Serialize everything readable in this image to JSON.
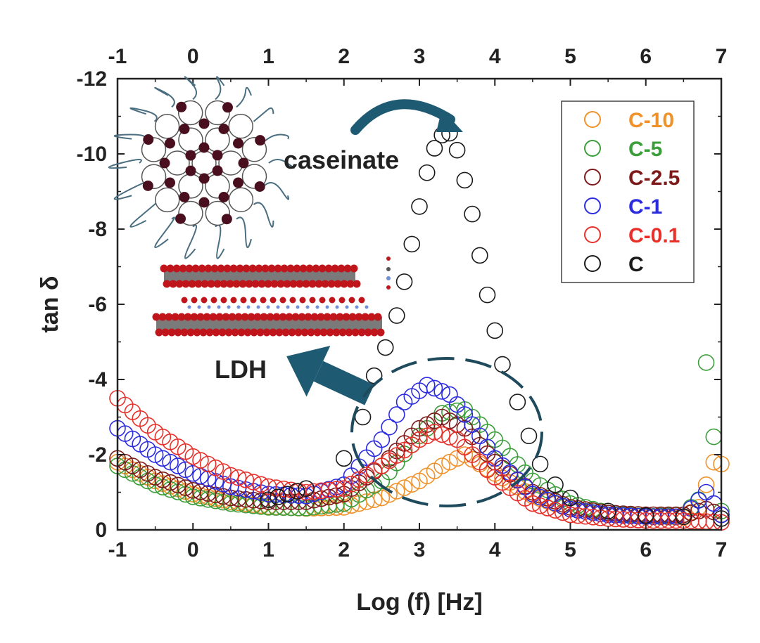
{
  "chart_data": {
    "type": "scatter",
    "title": "",
    "xlabel": "Log (f) [Hz]",
    "ylabel": "tan δ",
    "xlim": [
      -1,
      7
    ],
    "ylim": [
      0,
      -12
    ],
    "x_ticks": [
      "-1",
      "0",
      "1",
      "2",
      "3",
      "4",
      "5",
      "6",
      "7"
    ],
    "y_ticks": [
      "0",
      "-2",
      "-4",
      "-6",
      "-8",
      "-10",
      "-12"
    ],
    "legend_position": "top-right",
    "marker": "open-circle",
    "annotations": {
      "caseinate_label": "caseinate",
      "ldh_label": "LDH"
    },
    "series": [
      {
        "name": "C-10",
        "color": "#f0922b",
        "peak_x": 3.6,
        "peak_y": -2.0,
        "points": [
          [
            -1.0,
            -1.8
          ],
          [
            -0.5,
            -1.3
          ],
          [
            0.0,
            -0.95
          ],
          [
            0.5,
            -0.75
          ],
          [
            1.0,
            -0.62
          ],
          [
            1.5,
            -0.57
          ],
          [
            2.0,
            -0.6
          ],
          [
            2.5,
            -0.85
          ],
          [
            3.0,
            -1.3
          ],
          [
            3.3,
            -1.7
          ],
          [
            3.6,
            -2.0
          ],
          [
            4.0,
            -1.5
          ],
          [
            4.5,
            -0.9
          ],
          [
            5.0,
            -0.55
          ],
          [
            5.5,
            -0.4
          ],
          [
            6.0,
            -0.35
          ],
          [
            6.5,
            -0.33
          ],
          [
            6.7,
            -0.6
          ],
          [
            6.9,
            -1.8
          ],
          [
            7.0,
            -1.75
          ]
        ]
      },
      {
        "name": "C-5",
        "color": "#3c9e3a",
        "peak_x": 3.6,
        "peak_y": -3.2,
        "points": [
          [
            -1.0,
            -1.7
          ],
          [
            -0.5,
            -1.2
          ],
          [
            0.0,
            -0.88
          ],
          [
            0.5,
            -0.7
          ],
          [
            1.0,
            -0.6
          ],
          [
            1.5,
            -0.58
          ],
          [
            2.0,
            -0.7
          ],
          [
            2.5,
            -1.3
          ],
          [
            3.0,
            -2.5
          ],
          [
            3.3,
            -3.1
          ],
          [
            3.6,
            -3.2
          ],
          [
            4.0,
            -2.4
          ],
          [
            4.5,
            -1.3
          ],
          [
            5.0,
            -0.7
          ],
          [
            5.5,
            -0.45
          ],
          [
            6.0,
            -0.35
          ],
          [
            6.5,
            -0.4
          ],
          [
            6.7,
            -0.8
          ],
          [
            6.8,
            -4.45
          ],
          [
            7.0,
            -0.5
          ]
        ]
      },
      {
        "name": "C-2.5",
        "color": "#7d1a1a",
        "peak_x": 3.3,
        "peak_y": -3.0,
        "points": [
          [
            -1.0,
            -1.9
          ],
          [
            -0.5,
            -1.4
          ],
          [
            0.0,
            -1.05
          ],
          [
            0.5,
            -0.85
          ],
          [
            1.0,
            -0.75
          ],
          [
            1.5,
            -0.75
          ],
          [
            2.0,
            -0.95
          ],
          [
            2.5,
            -1.7
          ],
          [
            3.0,
            -2.7
          ],
          [
            3.3,
            -3.0
          ],
          [
            3.6,
            -2.7
          ],
          [
            4.0,
            -1.8
          ],
          [
            4.5,
            -1.0
          ],
          [
            5.0,
            -0.6
          ],
          [
            5.5,
            -0.45
          ],
          [
            6.0,
            -0.4
          ],
          [
            6.5,
            -0.4
          ],
          [
            6.8,
            -0.55
          ],
          [
            7.0,
            -0.4
          ]
        ]
      },
      {
        "name": "C-1",
        "color": "#2b2be0",
        "peak_x": 3.1,
        "peak_y": -3.85,
        "points": [
          [
            -1.0,
            -2.7
          ],
          [
            -0.5,
            -2.0
          ],
          [
            0.0,
            -1.5
          ],
          [
            0.5,
            -1.15
          ],
          [
            1.0,
            -0.95
          ],
          [
            1.5,
            -0.9
          ],
          [
            2.0,
            -1.2
          ],
          [
            2.5,
            -2.4
          ],
          [
            2.8,
            -3.4
          ],
          [
            3.1,
            -3.85
          ],
          [
            3.4,
            -3.6
          ],
          [
            3.7,
            -2.8
          ],
          [
            4.0,
            -1.9
          ],
          [
            4.5,
            -0.95
          ],
          [
            5.0,
            -0.55
          ],
          [
            5.5,
            -0.4
          ],
          [
            6.0,
            -0.35
          ],
          [
            6.5,
            -0.35
          ],
          [
            6.8,
            -1.0
          ],
          [
            7.0,
            -0.4
          ]
        ]
      },
      {
        "name": "C-0.1",
        "color": "#e8302a",
        "peak_x": 3.2,
        "peak_y": -2.6,
        "points": [
          [
            -1.0,
            -3.5
          ],
          [
            -0.5,
            -2.6
          ],
          [
            0.0,
            -1.95
          ],
          [
            0.5,
            -1.45
          ],
          [
            1.0,
            -1.15
          ],
          [
            1.5,
            -1.0
          ],
          [
            2.0,
            -1.1
          ],
          [
            2.5,
            -1.7
          ],
          [
            3.0,
            -2.4
          ],
          [
            3.2,
            -2.6
          ],
          [
            3.5,
            -2.4
          ],
          [
            4.0,
            -1.4
          ],
          [
            4.5,
            -0.7
          ],
          [
            5.0,
            -0.4
          ],
          [
            5.5,
            -0.3
          ],
          [
            6.0,
            -0.25
          ],
          [
            6.5,
            -0.25
          ],
          [
            7.0,
            -0.2
          ]
        ]
      },
      {
        "name": "C",
        "color": "#1a1a1a",
        "peak_x": 3.4,
        "peak_y": -10.55,
        "points": [
          [
            1.0,
            -0.8
          ],
          [
            1.5,
            -1.1
          ],
          [
            2.0,
            -1.9
          ],
          [
            2.25,
            -3.0
          ],
          [
            2.4,
            -4.1
          ],
          [
            2.55,
            -4.85
          ],
          [
            2.7,
            -5.7
          ],
          [
            2.8,
            -6.6
          ],
          [
            2.9,
            -7.6
          ],
          [
            3.0,
            -8.6
          ],
          [
            3.1,
            -9.5
          ],
          [
            3.2,
            -10.15
          ],
          [
            3.3,
            -10.5
          ],
          [
            3.4,
            -10.55
          ],
          [
            3.5,
            -10.1
          ],
          [
            3.6,
            -9.3
          ],
          [
            3.7,
            -8.4
          ],
          [
            3.8,
            -7.3
          ],
          [
            3.9,
            -6.25
          ],
          [
            4.0,
            -5.3
          ],
          [
            4.1,
            -4.4
          ],
          [
            4.3,
            -3.4
          ],
          [
            4.45,
            -2.5
          ],
          [
            4.6,
            -1.75
          ],
          [
            4.8,
            -1.2
          ],
          [
            5.0,
            -0.85
          ],
          [
            5.5,
            -0.5
          ],
          [
            6.0,
            -0.38
          ],
          [
            6.5,
            -0.35
          ],
          [
            7.0,
            -0.3
          ]
        ]
      }
    ]
  }
}
